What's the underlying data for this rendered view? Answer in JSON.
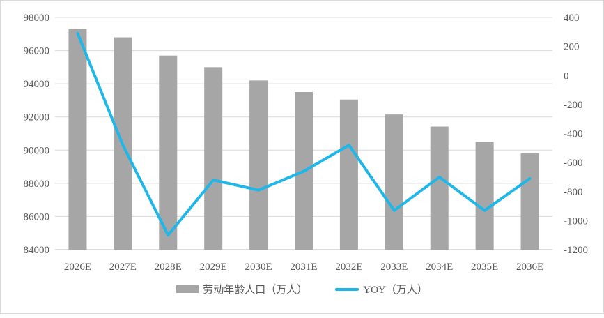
{
  "chart_data": {
    "type": "bar+line",
    "categories": [
      "2026E",
      "2027E",
      "2028E",
      "2029E",
      "2030E",
      "2031E",
      "2032E",
      "2033E",
      "2034E",
      "2035E",
      "2036E"
    ],
    "series": [
      {
        "name": "劳动年龄人口（万人）",
        "type": "bar",
        "axis": "left",
        "color": "#a6a6a6",
        "values": [
          97300,
          96800,
          95700,
          95000,
          94200,
          93500,
          93050,
          92150,
          91420,
          90500,
          89800
        ]
      },
      {
        "name": "YOY（万人）",
        "type": "line",
        "axis": "right",
        "color": "#1fb6e8",
        "values": [
          290,
          -480,
          -1100,
          -720,
          -790,
          -660,
          -480,
          -930,
          -700,
          -930,
          -710
        ]
      }
    ],
    "y_left": {
      "min": 84000,
      "max": 98000,
      "ticks": [
        98000,
        96000,
        94000,
        92000,
        90000,
        88000,
        86000,
        84000
      ]
    },
    "y_right": {
      "min": -1200,
      "max": 400,
      "ticks": [
        400,
        200,
        0,
        -200,
        -400,
        -600,
        -800,
        -1000,
        -1200
      ]
    },
    "grid": true,
    "legend_position": "bottom"
  }
}
